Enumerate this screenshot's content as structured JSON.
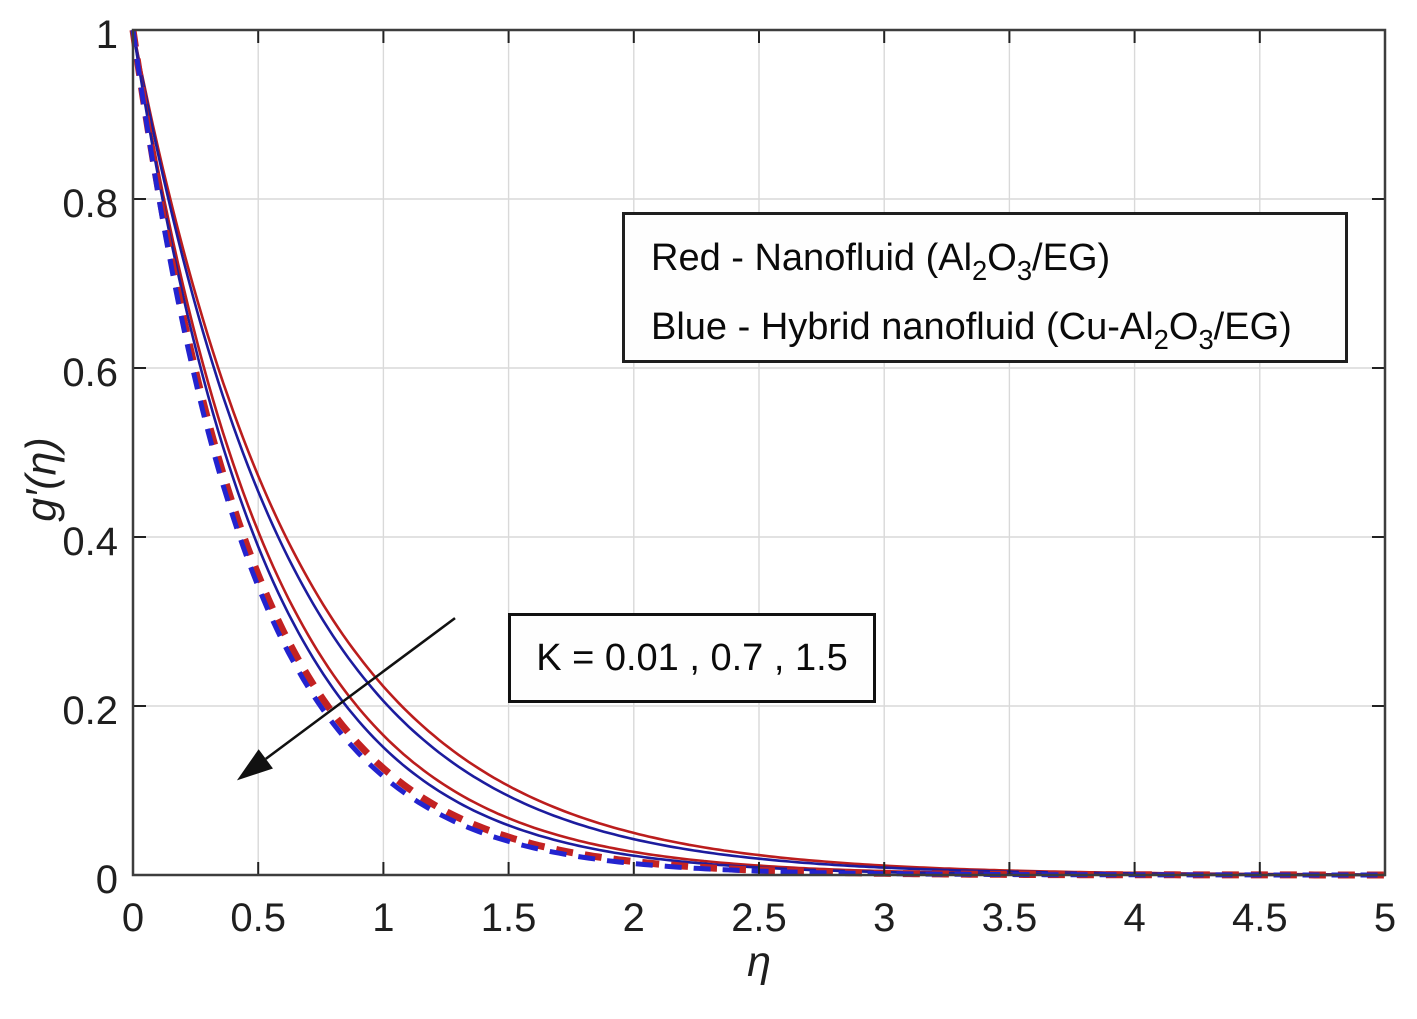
{
  "figure": {
    "background": "#ffffff",
    "plot_border_color": "#3d3d3d",
    "grid_color": "#d9d9d9",
    "tick_color": "#222222"
  },
  "legend": {
    "lines": [
      {
        "runs": [
          {
            "t": "Red - Nanofluid (Al"
          },
          {
            "t": "2",
            "sub": true
          },
          {
            "t": "O"
          },
          {
            "t": "3",
            "sub": true
          },
          {
            "t": "/EG)"
          }
        ]
      },
      {
        "runs": [
          {
            "t": "Blue - Hybrid nanofluid (Cu-Al"
          },
          {
            "t": "2",
            "sub": true
          },
          {
            "t": "O"
          },
          {
            "t": "3",
            "sub": true
          },
          {
            "t": "/EG)"
          }
        ]
      }
    ]
  },
  "annotation": {
    "k_label": "K = 0.01 , 0.7 , 1.5"
  },
  "chart_data": {
    "type": "line",
    "title": "",
    "xlabel": "η",
    "ylabel": "g′(η)",
    "xlim": [
      0,
      5
    ],
    "ylim": [
      0,
      1
    ],
    "xticks": [
      0,
      0.5,
      1,
      1.5,
      2,
      2.5,
      3,
      3.5,
      4,
      4.5,
      5
    ],
    "yticks": [
      0,
      0.2,
      0.4,
      0.6,
      0.8,
      1
    ],
    "grid": true,
    "legend_position": "upper right (custom box)",
    "model": "g'(eta) = exp(-c * eta), eta in [0,5]",
    "colors": {
      "nanofluid_red": "#bb1d1d",
      "hybrid_blue": "#1c1c9e",
      "dashed_red": "#c32222",
      "dashed_blue": "#2323cf"
    },
    "series": [
      {
        "name": "Nanofluid (Al2O3/EG), K = 0.01",
        "K": 0.01,
        "color": "#bb1d1d",
        "style": "solid",
        "width": 2.6,
        "c": 1.5
      },
      {
        "name": "Hybrid nanofluid (Cu-Al2O3/EG), K = 0.01",
        "K": 0.01,
        "color": "#1c1c9e",
        "style": "solid",
        "width": 2.6,
        "c": 1.58
      },
      {
        "name": "Nanofluid (Al2O3/EG), K = 0.7",
        "K": 0.7,
        "color": "#bb1d1d",
        "style": "solid",
        "width": 2.6,
        "c": 1.8
      },
      {
        "name": "Hybrid nanofluid (Cu-Al2O3/EG), K = 0.7",
        "K": 0.7,
        "color": "#1c1c9e",
        "style": "solid",
        "width": 2.6,
        "c": 1.89
      },
      {
        "name": "Nanofluid (Al2O3/EG), K = 1.5",
        "K": 1.5,
        "color": "#c32222",
        "style": "dashed",
        "width": 7.0,
        "c": 2.07
      },
      {
        "name": "Hybrid nanofluid (Cu-Al2O3/EG), K = 1.5",
        "K": 1.5,
        "color": "#2323cf",
        "style": "dashed",
        "width": 5.0,
        "c": 2.15
      }
    ],
    "annotation_arrow": {
      "from_eta": 1.286,
      "from_g": 0.304,
      "to_eta": 0.415,
      "to_g": 0.112,
      "meaning": "direction of increasing K"
    }
  }
}
